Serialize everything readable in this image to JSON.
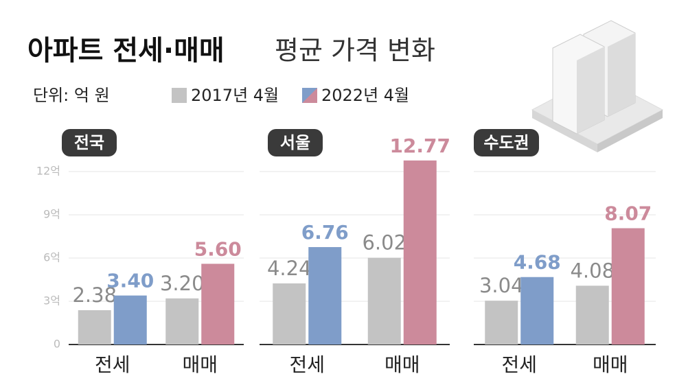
{
  "header": {
    "title_bold": "아파트 전세·매매",
    "title_light": "평균 가격 변화",
    "unit": "단위: 억 원"
  },
  "legend": [
    "2017년 4월",
    "2022년 4월"
  ],
  "chart_data": [
    {
      "type": "bar",
      "title": "전국",
      "categories": [
        "전세",
        "매매"
      ],
      "series": [
        {
          "color": "#c3c3c3",
          "values": [
            2.38,
            3.2
          ],
          "value_labels": [
            "2.38",
            "3.20"
          ]
        },
        {
          "colors": [
            "#7f9dc9",
            "#cc8a9b"
          ],
          "values": [
            3.4,
            5.6
          ],
          "value_labels": [
            "3.40",
            "5.60"
          ]
        }
      ],
      "ylim": [
        0,
        13
      ],
      "yticks": [
        0,
        {
          "value": 3,
          "label": "3억"
        },
        {
          "value": 6,
          "label": "6억"
        },
        {
          "value": 9,
          "label": "9억"
        },
        {
          "value": 12,
          "label": "12억"
        }
      ],
      "grid": true
    },
    {
      "type": "bar",
      "title": "서울",
      "categories": [
        "전세",
        "매매"
      ],
      "series": [
        {
          "color": "#c3c3c3",
          "values": [
            4.24,
            6.02
          ],
          "value_labels": [
            "4.24",
            "6.02"
          ]
        },
        {
          "colors": [
            "#7f9dc9",
            "#cc8a9b"
          ],
          "values": [
            6.76,
            12.77
          ],
          "value_labels": [
            "6.76",
            "12.77"
          ]
        }
      ],
      "ylim": [
        0,
        13
      ],
      "yticks": [
        0,
        3,
        6,
        9,
        12
      ],
      "grid": true
    },
    {
      "type": "bar",
      "title": "수도권",
      "categories": [
        "전세",
        "매매"
      ],
      "series": [
        {
          "color": "#c3c3c3",
          "values": [
            3.04,
            4.08
          ],
          "value_labels": [
            "3.04",
            "4.08"
          ]
        },
        {
          "colors": [
            "#7f9dc9",
            "#cc8a9b"
          ],
          "values": [
            4.68,
            8.07
          ],
          "value_labels": [
            "4.68",
            "8.07"
          ]
        }
      ],
      "ylim": [
        0,
        13
      ],
      "yticks": [
        0,
        3,
        6,
        9,
        12
      ],
      "grid": true
    }
  ]
}
